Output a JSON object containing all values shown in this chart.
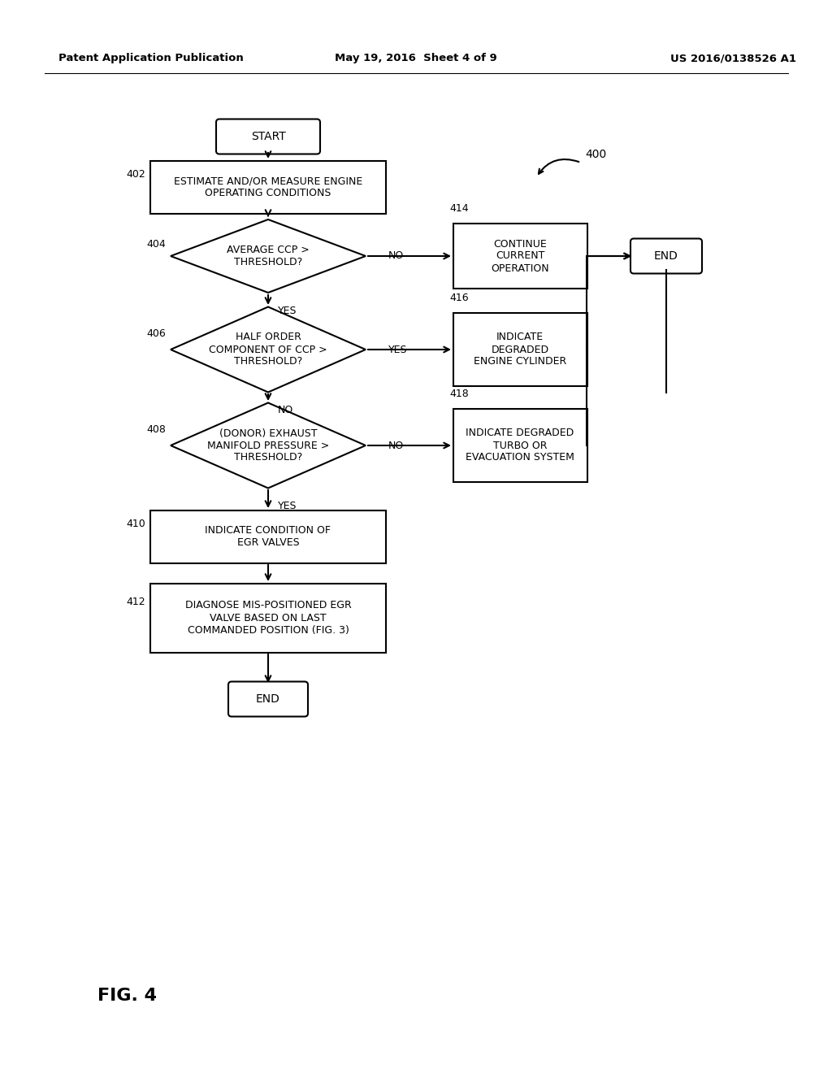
{
  "header_left": "Patent Application Publication",
  "header_mid": "May 19, 2016  Sheet 4 of 9",
  "header_right": "US 2016/0138526 A1",
  "fig_label": "FIG. 4",
  "background": "#ffffff"
}
